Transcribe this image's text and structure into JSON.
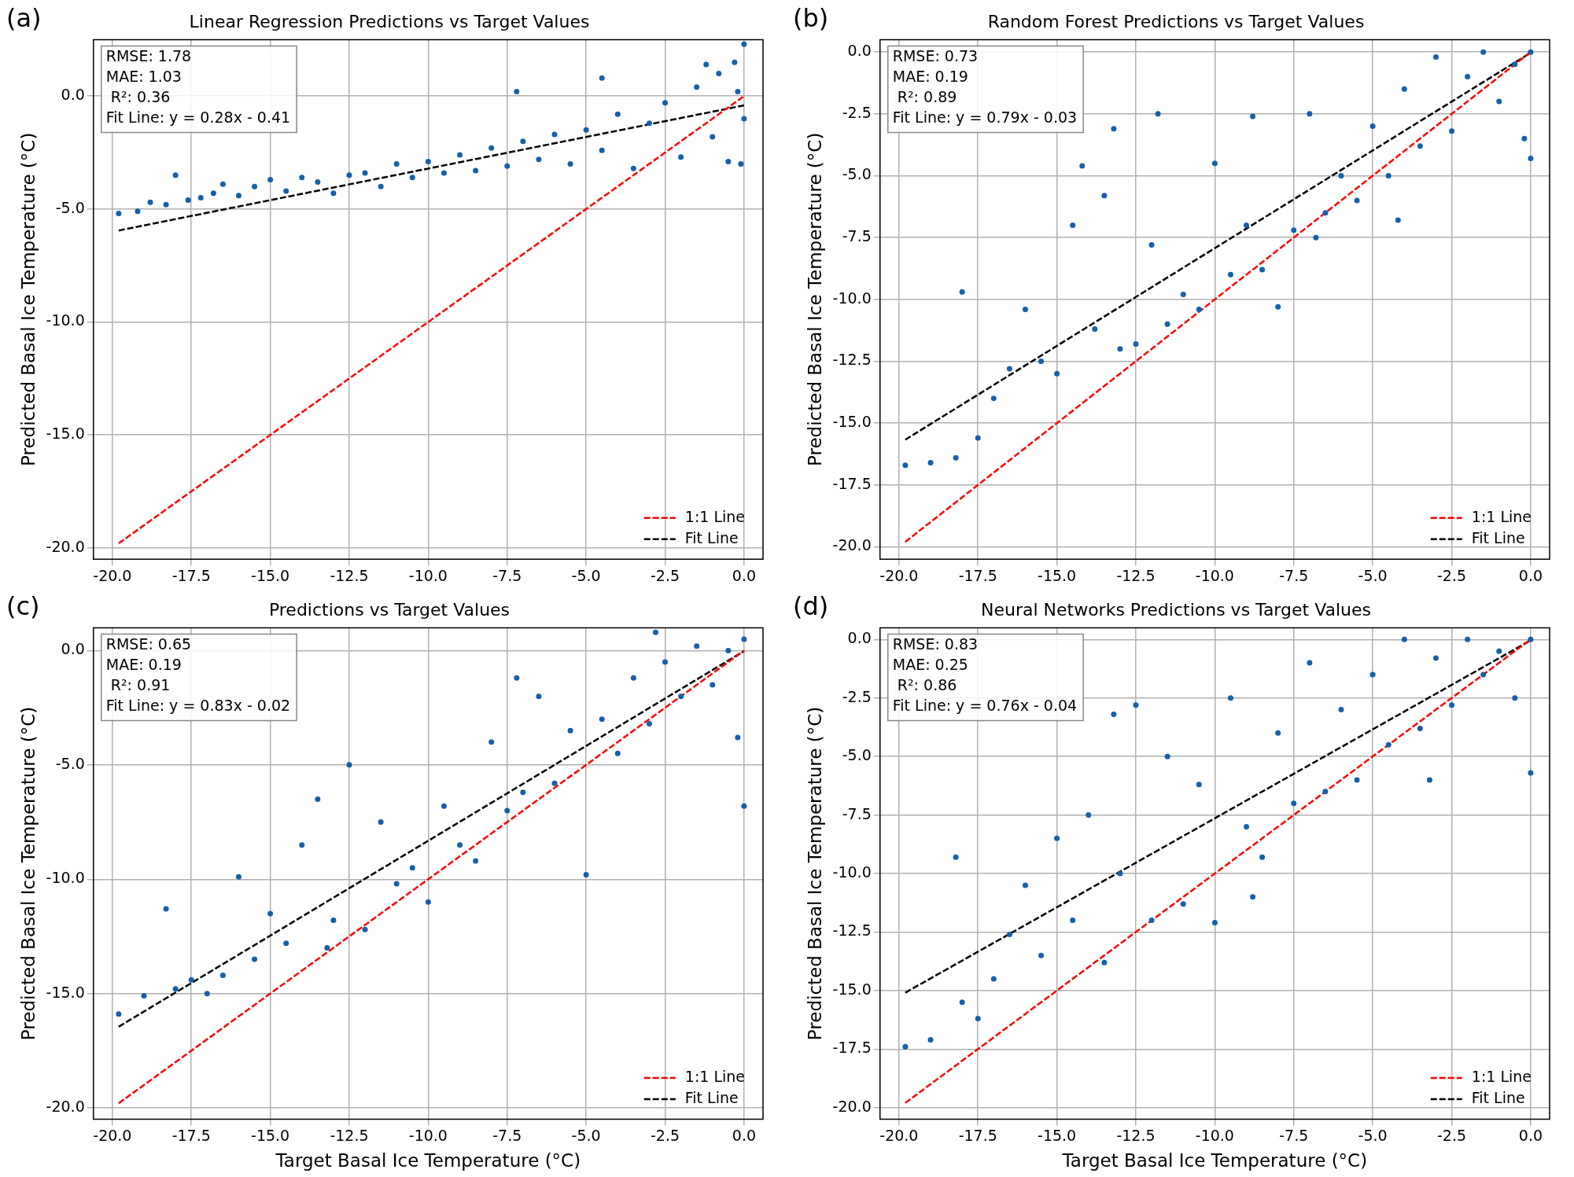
{
  "chart_data": [
    {
      "type": "scatter",
      "title": "Linear Regression Predictions vs Target Values",
      "ylabel": "Predicted Basal Ice Temperature (°C)",
      "xlim": [
        -20.6,
        0.6
      ],
      "ylim": [
        -20.5,
        2.5
      ],
      "xticks": [
        {
          "value": -20,
          "label": "-20.0"
        },
        -17.5,
        {
          "value": -15,
          "label": "-15.0"
        },
        -12.5,
        {
          "value": -10,
          "label": "-10.0"
        },
        -7.5,
        {
          "value": -5,
          "label": "-5.0"
        },
        -2.5,
        {
          "value": 0,
          "label": "0.0"
        }
      ],
      "yticks": [
        {
          "value": -20,
          "label": "-20.0"
        },
        {
          "value": -15,
          "label": "-15.0"
        },
        {
          "value": -10,
          "label": "-10.0"
        },
        {
          "value": -5,
          "label": "-5.0"
        },
        {
          "value": 0,
          "label": "0.0"
        }
      ],
      "grid": true,
      "legend": "bottom right",
      "annotations": [
        "(a)",
        "RMSE: 1.78",
        "MAE: 1.03",
        " R²: 0.36",
        "Fit Line: y = 0.28x - 0.41"
      ],
      "series": [
        {
          "type": "scatter",
          "color": "#1660a8",
          "marker": "circle",
          "x": [
            -19.8,
            -19.2,
            -18.8,
            -18.3,
            -18.0,
            -17.6,
            -17.2,
            -16.8,
            -16.5,
            -16.0,
            -15.5,
            -15.0,
            -14.5,
            -14.0,
            -13.5,
            -13.0,
            -12.5,
            -12.0,
            -11.5,
            -11.0,
            -10.5,
            -10.0,
            -9.5,
            -9.0,
            -8.5,
            -8.0,
            -7.5,
            -7.0,
            -6.5,
            -6.0,
            -5.5,
            -5.0,
            -4.5,
            -4.0,
            -3.5,
            -3.0,
            -2.5,
            -2.0,
            -1.5,
            -1.0,
            -0.8,
            -0.5,
            -0.3,
            -0.1,
            0,
            0,
            -0.2,
            -7.2,
            -4.5,
            -1.2
          ],
          "values": [
            -5.2,
            -5.1,
            -4.7,
            -4.8,
            -3.5,
            -4.6,
            -4.5,
            -4.3,
            -3.9,
            -4.4,
            -4.0,
            -3.7,
            -4.2,
            -3.6,
            -3.8,
            -4.3,
            -3.5,
            -3.4,
            -4.0,
            -3.0,
            -3.6,
            -2.9,
            -3.4,
            -2.6,
            -3.3,
            -2.3,
            -3.1,
            -2.0,
            -2.8,
            -1.7,
            -3.0,
            -1.5,
            -2.4,
            -0.8,
            -3.2,
            -1.2,
            -0.3,
            -2.7,
            0.4,
            -1.8,
            1.0,
            -2.9,
            1.5,
            -3.0,
            2.3,
            -1.0,
            0.2,
            0.2,
            0.8,
            1.4
          ]
        },
        {
          "name": "1:1 Line",
          "type": "line",
          "color": "#ff0000",
          "line_style": "dashed",
          "marker": "none",
          "x": [
            -19.8,
            0
          ],
          "values": [
            -19.8,
            0
          ]
        },
        {
          "name": "Fit Line",
          "type": "line",
          "color": "#000000",
          "line_style": "dashed",
          "marker": "none",
          "x": [
            -19.8,
            0
          ],
          "values": [
            -5.95,
            -0.41
          ]
        }
      ]
    },
    {
      "type": "scatter",
      "title": "Random Forest Predictions vs Target Values",
      "ylabel": "Predicted Basal Ice Temperature (°C)",
      "xlim": [
        -20.6,
        0.6
      ],
      "ylim": [
        -20.5,
        0.5
      ],
      "xticks": [
        {
          "value": -20,
          "label": "-20.0"
        },
        -17.5,
        {
          "value": -15,
          "label": "-15.0"
        },
        -12.5,
        {
          "value": -10,
          "label": "-10.0"
        },
        -7.5,
        {
          "value": -5,
          "label": "-5.0"
        },
        -2.5,
        {
          "value": 0,
          "label": "0.0"
        }
      ],
      "yticks": [
        {
          "value": -20,
          "label": "-20.0"
        },
        -17.5,
        {
          "value": -15,
          "label": "-15.0"
        },
        -12.5,
        {
          "value": -10,
          "label": "-10.0"
        },
        -7.5,
        {
          "value": -5,
          "label": "-5.0"
        },
        -2.5,
        {
          "value": 0,
          "label": "0.0"
        }
      ],
      "grid": true,
      "legend": "bottom right",
      "annotations": [
        "(b)",
        "RMSE: 0.73",
        "MAE: 0.19",
        " R²: 0.89",
        "Fit Line: y = 0.79x - 0.03"
      ],
      "series": [
        {
          "type": "scatter",
          "color": "#1660a8",
          "marker": "circle",
          "x": [
            -19.8,
            -19.0,
            -18.2,
            -18.0,
            -17.5,
            -17.0,
            -16.5,
            -16.0,
            -15.5,
            -15.0,
            -14.5,
            -14.2,
            -13.8,
            -13.5,
            -13.2,
            -13.0,
            -12.5,
            -12.0,
            -11.5,
            -11.0,
            -10.5,
            -10.0,
            -9.5,
            -9.0,
            -8.5,
            -8.0,
            -7.5,
            -7.0,
            -6.5,
            -6.0,
            -5.5,
            -5.0,
            -4.5,
            -4.0,
            -3.5,
            -3.0,
            -2.5,
            -2.0,
            -1.5,
            -1.0,
            -0.5,
            -0.2,
            0,
            0,
            -8.8,
            -6.8,
            -11.8,
            -4.2
          ],
          "values": [
            -16.7,
            -16.6,
            -16.4,
            -9.7,
            -15.6,
            -14.0,
            -12.8,
            -10.4,
            -12.5,
            -13.0,
            -7.0,
            -4.6,
            -11.2,
            -5.8,
            -3.1,
            -12.0,
            -11.8,
            -7.8,
            -11.0,
            -9.8,
            -10.4,
            -4.5,
            -9.0,
            -7.0,
            -8.8,
            -10.3,
            -7.2,
            -2.5,
            -6.5,
            -5.0,
            -6.0,
            -3.0,
            -5.0,
            -1.5,
            -3.8,
            -0.2,
            -3.2,
            -1.0,
            0,
            -2.0,
            -0.5,
            -3.5,
            -4.3,
            0,
            -2.6,
            -7.5,
            -2.5,
            -6.8
          ]
        },
        {
          "name": "1:1 Line",
          "type": "line",
          "color": "#ff0000",
          "line_style": "dashed",
          "marker": "none",
          "x": [
            -19.8,
            0
          ],
          "values": [
            -19.8,
            0
          ]
        },
        {
          "name": "Fit Line",
          "type": "line",
          "color": "#000000",
          "line_style": "dashed",
          "marker": "none",
          "x": [
            -19.8,
            0
          ],
          "values": [
            -15.67,
            -0.03
          ]
        }
      ]
    },
    {
      "type": "scatter",
      "title": "Predictions vs Target Values",
      "xlabel": "Target Basal Ice Temperature (°C)",
      "ylabel": "Predicted Basal Ice Temperature (°C)",
      "xlim": [
        -20.6,
        0.6
      ],
      "ylim": [
        -20.5,
        1.0
      ],
      "xticks": [
        {
          "value": -20,
          "label": "-20.0"
        },
        -17.5,
        {
          "value": -15,
          "label": "-15.0"
        },
        -12.5,
        {
          "value": -10,
          "label": "-10.0"
        },
        -7.5,
        {
          "value": -5,
          "label": "-5.0"
        },
        -2.5,
        {
          "value": 0,
          "label": "0.0"
        }
      ],
      "yticks": [
        {
          "value": -20,
          "label": "-20.0"
        },
        {
          "value": -15,
          "label": "-15.0"
        },
        {
          "value": -10,
          "label": "-10.0"
        },
        {
          "value": -5,
          "label": "-5.0"
        },
        {
          "value": 0,
          "label": "0.0"
        }
      ],
      "grid": true,
      "legend": "bottom right",
      "annotations": [
        "(c)",
        "RMSE: 0.65",
        "MAE: 0.19",
        " R²: 0.91",
        "Fit Line: y = 0.83x - 0.02"
      ],
      "series": [
        {
          "type": "scatter",
          "color": "#1660a8",
          "marker": "circle",
          "x": [
            -19.8,
            -19,
            -18.3,
            -18,
            -17.5,
            -17,
            -16.5,
            -16,
            -15.5,
            -15,
            -14.5,
            -14,
            -13.5,
            -13,
            -12.5,
            -12,
            -11.5,
            -11,
            -10.5,
            -10,
            -9.5,
            -9,
            -8.5,
            -8,
            -7.5,
            -7,
            -6.5,
            -6,
            -5.5,
            -5,
            -4.5,
            -4,
            -3.5,
            -3,
            -2.5,
            -2,
            -1.5,
            -1,
            -0.5,
            -0.2,
            0,
            0,
            -2.8,
            -13.2,
            -7.2
          ],
          "values": [
            -15.9,
            -15.1,
            -11.3,
            -14.8,
            -14.4,
            -15.0,
            -14.2,
            -9.9,
            -13.5,
            -11.5,
            -12.8,
            -8.5,
            -6.5,
            -11.8,
            -5.0,
            -12.2,
            -7.5,
            -10.2,
            -9.5,
            -11.0,
            -6.8,
            -8.5,
            -9.2,
            -4.0,
            -7.0,
            -6.2,
            -2.0,
            -5.8,
            -3.5,
            -9.8,
            -3.0,
            -4.5,
            -1.2,
            -3.2,
            -0.5,
            -2.0,
            0.2,
            -1.5,
            0,
            -3.8,
            -6.8,
            0.5,
            0.8,
            -13.0,
            -1.2
          ]
        },
        {
          "name": "1:1 Line",
          "type": "line",
          "color": "#ff0000",
          "line_style": "dashed",
          "marker": "none",
          "x": [
            -19.8,
            0
          ],
          "values": [
            -19.8,
            0
          ]
        },
        {
          "name": "Fit Line",
          "type": "line",
          "color": "#000000",
          "line_style": "dashed",
          "marker": "none",
          "x": [
            -19.8,
            0
          ],
          "values": [
            -16.45,
            -0.02
          ]
        }
      ]
    },
    {
      "type": "scatter",
      "title": "Neural Networks Predictions vs Target Values",
      "xlabel": "Target Basal Ice Temperature (°C)",
      "ylabel": "Predicted Basal Ice Temperature (°C)",
      "xlim": [
        -20.6,
        0.6
      ],
      "ylim": [
        -20.5,
        0.5
      ],
      "xticks": [
        {
          "value": -20,
          "label": "-20.0"
        },
        -17.5,
        {
          "value": -15,
          "label": "-15.0"
        },
        -12.5,
        {
          "value": -10,
          "label": "-10.0"
        },
        -7.5,
        {
          "value": -5,
          "label": "-5.0"
        },
        -2.5,
        {
          "value": 0,
          "label": "0.0"
        }
      ],
      "yticks": [
        {
          "value": -20,
          "label": "-20.0"
        },
        -17.5,
        {
          "value": -15,
          "label": "-15.0"
        },
        -12.5,
        {
          "value": -10,
          "label": "-10.0"
        },
        -7.5,
        {
          "value": -5,
          "label": "-5.0"
        },
        -2.5,
        {
          "value": 0,
          "label": "0.0"
        }
      ],
      "grid": true,
      "legend": "bottom right",
      "annotations": [
        "(d)",
        "RMSE: 0.83",
        "MAE: 0.25",
        " R²: 0.86",
        "Fit Line: y = 0.76x - 0.04"
      ],
      "series": [
        {
          "type": "scatter",
          "color": "#1660a8",
          "marker": "circle",
          "x": [
            -19.8,
            -19,
            -18.2,
            -18,
            -17.5,
            -17,
            -16.5,
            -16,
            -15.5,
            -15,
            -14.5,
            -14,
            -13.5,
            -13.2,
            -13,
            -12.5,
            -12,
            -11.5,
            -11,
            -10.5,
            -10,
            -9.5,
            -9,
            -8.5,
            -8,
            -7.5,
            -7,
            -6.5,
            -6,
            -5.5,
            -5,
            -4.5,
            -4,
            -3.5,
            -3,
            -2.5,
            -2,
            -1.5,
            -1,
            -0.5,
            0,
            0,
            -3.2,
            -8.8
          ],
          "values": [
            -17.4,
            -17.1,
            -9.3,
            -15.5,
            -16.2,
            -14.5,
            -12.6,
            -10.5,
            -13.5,
            -8.5,
            -12.0,
            -7.5,
            -13.8,
            -3.2,
            -10.0,
            -2.8,
            -12.0,
            -5.0,
            -11.3,
            -6.2,
            -12.1,
            -2.5,
            -8.0,
            -9.3,
            -4.0,
            -7.0,
            -1.0,
            -6.5,
            -3.0,
            -6.0,
            -1.5,
            -4.5,
            0,
            -3.8,
            -0.8,
            -2.8,
            0,
            -1.5,
            -0.5,
            -2.5,
            -5.7,
            0,
            -6.0,
            -11.0
          ]
        },
        {
          "name": "1:1 Line",
          "type": "line",
          "color": "#ff0000",
          "line_style": "dashed",
          "marker": "none",
          "x": [
            -19.8,
            0
          ],
          "values": [
            -19.8,
            0
          ]
        },
        {
          "name": "Fit Line",
          "type": "line",
          "color": "#000000",
          "line_style": "dashed",
          "marker": "none",
          "x": [
            -19.8,
            0
          ],
          "values": [
            -15.09,
            -0.04
          ]
        }
      ]
    }
  ]
}
